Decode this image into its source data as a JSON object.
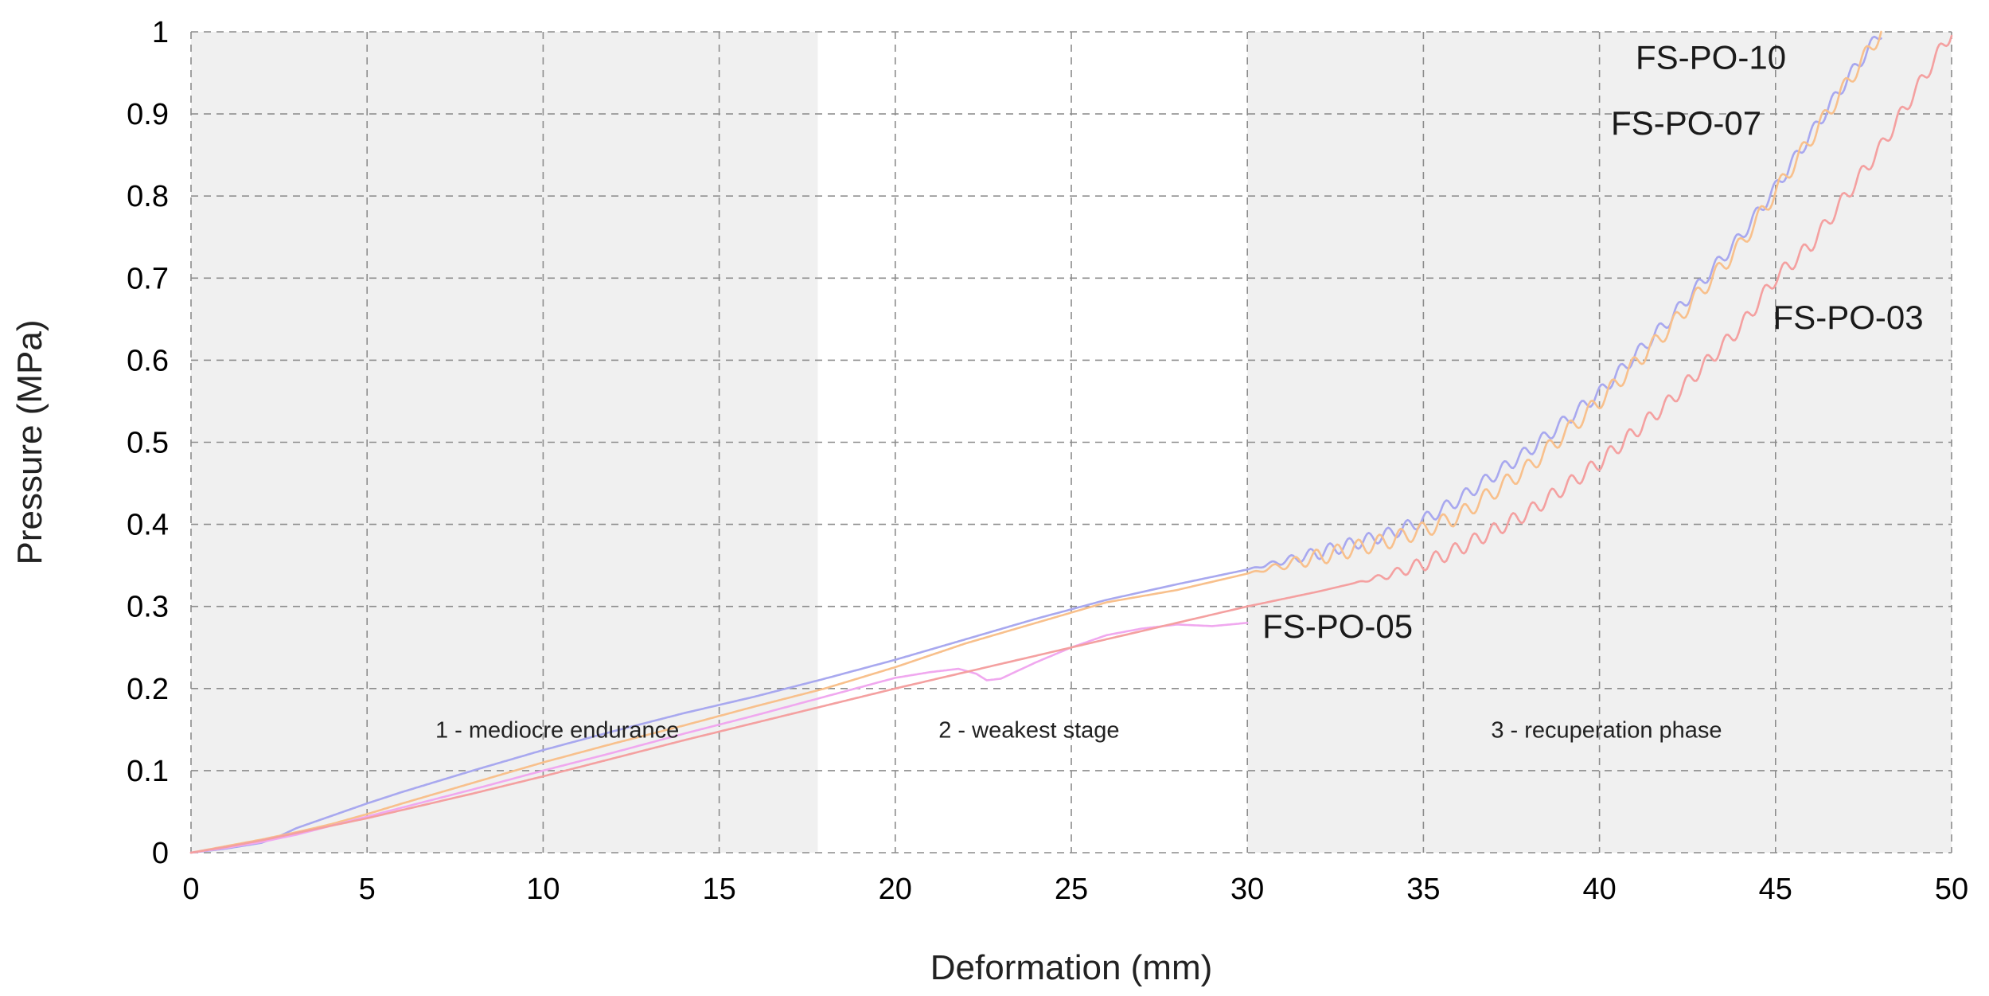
{
  "chart_data": {
    "type": "line",
    "xlabel": "Deformation (mm)",
    "ylabel": "Pressure (MPa)",
    "xlim": [
      0,
      50
    ],
    "ylim": [
      0,
      1
    ],
    "x_ticks": [
      0,
      5,
      10,
      15,
      20,
      25,
      30,
      35,
      40,
      45,
      50
    ],
    "y_ticks": [
      0,
      0.1,
      0.2,
      0.3,
      0.4,
      0.5,
      0.6,
      0.7,
      0.8,
      0.9,
      1
    ],
    "y_tick_labels": [
      "0",
      "0.1",
      "0.2",
      "0.3",
      "0.4",
      "0.5",
      "0.6",
      "0.7",
      "0.8",
      "0.9",
      "1"
    ],
    "grid": true,
    "regions": [
      {
        "label": "1 - mediocre endurance",
        "x_start": 0,
        "x_end": 17.8,
        "label_x": 10.4,
        "label_y": 0.14,
        "shaded": true,
        "color": "#f0f0f0"
      },
      {
        "label": "2 - weakest stage",
        "x_start": 17.8,
        "x_end": 30,
        "label_x": 23.8,
        "label_y": 0.14,
        "shaded": false,
        "color": "#ffffff"
      },
      {
        "label": "3 - recuperation phase",
        "x_start": 30,
        "x_end": 50,
        "label_x": 40.2,
        "label_y": 0.14,
        "shaded": true,
        "color": "#f0f0f0"
      }
    ],
    "series": [
      {
        "name": "FS-PO-10",
        "color": "#a8a8ef",
        "label_x": 45.3,
        "label_y": 0.955,
        "oscillation": {
          "start_x": 30,
          "amplitude": 0.008,
          "period": 0.55
        },
        "x": [
          0,
          1,
          2,
          2.5,
          3,
          4,
          5,
          6,
          8,
          10,
          12,
          14,
          16,
          18,
          20,
          22,
          24,
          26,
          28,
          30,
          32,
          34,
          35,
          36,
          38,
          40,
          42,
          44,
          45,
          46,
          47,
          48
        ],
        "y": [
          0,
          0.005,
          0.012,
          0.02,
          0.03,
          0.045,
          0.06,
          0.074,
          0.1,
          0.125,
          0.148,
          0.17,
          0.19,
          0.212,
          0.235,
          0.26,
          0.285,
          0.308,
          0.327,
          0.345,
          0.365,
          0.388,
          0.405,
          0.43,
          0.49,
          0.56,
          0.65,
          0.75,
          0.81,
          0.875,
          0.94,
          1.0
        ]
      },
      {
        "name": "FS-PO-07",
        "color": "#f8c08c",
        "label_x": 44.6,
        "label_y": 0.875,
        "oscillation": {
          "start_x": 30,
          "amplitude": 0.01,
          "period": 0.6
        },
        "x": [
          0,
          1,
          2,
          3,
          4,
          5,
          6,
          8,
          10,
          12,
          14,
          16,
          18,
          20,
          22,
          24,
          26,
          28,
          30,
          32,
          34,
          35,
          36,
          38,
          40,
          42,
          44,
          45,
          46,
          47,
          48
        ],
        "y": [
          0,
          0.008,
          0.016,
          0.025,
          0.035,
          0.047,
          0.06,
          0.085,
          0.11,
          0.133,
          0.155,
          0.178,
          0.2,
          0.226,
          0.255,
          0.28,
          0.305,
          0.32,
          0.34,
          0.36,
          0.38,
          0.393,
          0.41,
          0.47,
          0.55,
          0.64,
          0.74,
          0.805,
          0.87,
          0.935,
          1.0
        ]
      },
      {
        "name": "FS-PO-05",
        "color": "#f0a8ef",
        "label_x": 34.7,
        "label_y": 0.262,
        "oscillation": {
          "start_x": 999,
          "amplitude": 0,
          "period": 1
        },
        "x": [
          0,
          1,
          2,
          3,
          4,
          5,
          6,
          8,
          10,
          12,
          14,
          16,
          18,
          20,
          21,
          21.8,
          22.3,
          22.6,
          23,
          24,
          25,
          26,
          27,
          28,
          29,
          30
        ],
        "y": [
          0,
          0.006,
          0.013,
          0.022,
          0.033,
          0.044,
          0.055,
          0.077,
          0.1,
          0.122,
          0.145,
          0.167,
          0.19,
          0.213,
          0.22,
          0.224,
          0.218,
          0.21,
          0.212,
          0.232,
          0.25,
          0.265,
          0.273,
          0.278,
          0.276,
          0.28
        ]
      },
      {
        "name": "FS-PO-03",
        "color": "#f4a0a0",
        "label_x": 49.2,
        "label_y": 0.638,
        "oscillation": {
          "start_x": 33,
          "amplitude": 0.009,
          "period": 0.55
        },
        "x": [
          0,
          1,
          2,
          3,
          4,
          5,
          6,
          8,
          10,
          12,
          14,
          16,
          18,
          20,
          22,
          24,
          26,
          28,
          30,
          32,
          34,
          35,
          36,
          38,
          40,
          42,
          44,
          45,
          46,
          48,
          50
        ],
        "y": [
          0,
          0.007,
          0.015,
          0.024,
          0.033,
          0.042,
          0.052,
          0.072,
          0.093,
          0.115,
          0.137,
          0.158,
          0.179,
          0.2,
          0.22,
          0.24,
          0.26,
          0.28,
          0.3,
          0.318,
          0.338,
          0.352,
          0.37,
          0.415,
          0.475,
          0.55,
          0.64,
          0.7,
          0.74,
          0.86,
          1.0
        ]
      }
    ]
  }
}
